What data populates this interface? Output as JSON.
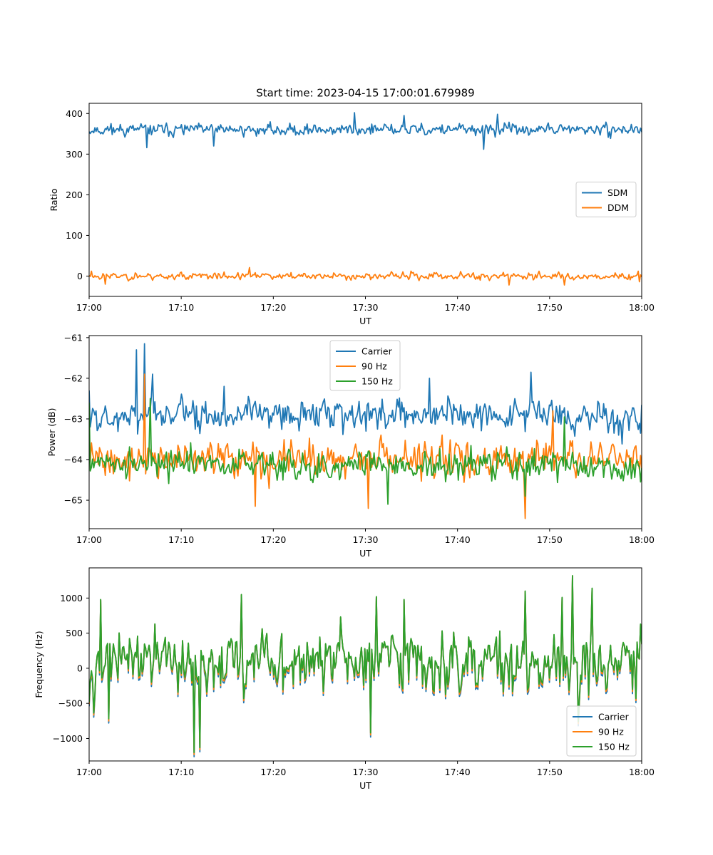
{
  "figure": {
    "title": "Start time: 2023-04-15 17:00:01.679989"
  },
  "chart_data": [
    {
      "type": "line",
      "panel": "ratio",
      "xlabel": "UT",
      "ylabel": "Ratio",
      "x_range": [
        "17:00",
        "18:00"
      ],
      "x_ticks": [
        "17:00",
        "17:10",
        "17:20",
        "17:30",
        "17:40",
        "17:50",
        "18:00"
      ],
      "ylim": [
        -50,
        425
      ],
      "y_ticks": [
        0,
        100,
        200,
        300,
        400
      ],
      "legend_position": "center-right",
      "n_points": 480,
      "series": [
        {
          "name": "SDM",
          "color": "#1f77b4",
          "mean": 360,
          "spread": 13,
          "seed": 11,
          "features": [
            [
              0.04,
              375
            ],
            [
              0.105,
              316
            ],
            [
              0.225,
              320
            ],
            [
              0.48,
              402
            ],
            [
              0.57,
              395
            ],
            [
              0.715,
              312
            ],
            [
              0.74,
              398
            ],
            [
              0.965,
              352
            ]
          ]
        },
        {
          "name": "DDM",
          "color": "#ff7f0e",
          "mean": 0,
          "spread": 8,
          "seed": 23,
          "features": [
            [
              0.005,
              12
            ],
            [
              0.03,
              -20
            ],
            [
              0.29,
              21
            ],
            [
              0.76,
              -22
            ],
            [
              0.86,
              -22
            ],
            [
              0.995,
              -14
            ]
          ]
        }
      ]
    },
    {
      "type": "line",
      "panel": "power",
      "xlabel": "UT",
      "ylabel": "Power (dB)",
      "x_range": [
        "17:00",
        "18:00"
      ],
      "x_ticks": [
        "17:00",
        "17:10",
        "17:20",
        "17:30",
        "17:40",
        "17:50",
        "18:00"
      ],
      "ylim": [
        -65.7,
        -60.95
      ],
      "y_ticks": [
        -65,
        -64,
        -63,
        -62,
        -61
      ],
      "legend_position": "upper-center",
      "n_points": 480,
      "series": [
        {
          "name": "Carrier",
          "color": "#1f77b4",
          "mean": -62.9,
          "spread": 0.36,
          "seed": 5,
          "features": [
            [
              0.0,
              -62.3
            ],
            [
              0.085,
              -61.3
            ],
            [
              0.1,
              -61.15
            ],
            [
              0.115,
              -61.9
            ],
            [
              0.245,
              -62.2
            ],
            [
              0.5,
              -63.3
            ],
            [
              0.615,
              -62.0
            ],
            [
              0.8,
              -61.85
            ],
            [
              0.998,
              -63.35
            ]
          ]
        },
        {
          "name": "90 Hz",
          "color": "#ff7f0e",
          "mean": -64.0,
          "spread": 0.38,
          "seed": 41,
          "features": [
            [
              0.1,
              -61.9
            ],
            [
              0.3,
              -65.15
            ],
            [
              0.505,
              -65.2
            ],
            [
              0.79,
              -65.45
            ],
            [
              0.84,
              -62.8
            ],
            [
              0.998,
              -63.9
            ]
          ]
        },
        {
          "name": "150 Hz",
          "color": "#2ca02c",
          "mean": -64.15,
          "spread": 0.33,
          "seed": 77,
          "features": [
            [
              0.0,
              -62.6
            ],
            [
              0.11,
              -62.5
            ],
            [
              0.54,
              -65.1
            ],
            [
              0.79,
              -64.9
            ],
            [
              0.86,
              -62.95
            ],
            [
              0.998,
              -64.55
            ]
          ]
        }
      ]
    },
    {
      "type": "line",
      "panel": "frequency",
      "xlabel": "UT",
      "ylabel": "Frequency (Hz)",
      "x_range": [
        "17:00",
        "18:00"
      ],
      "x_ticks": [
        "17:00",
        "17:10",
        "17:20",
        "17:30",
        "17:40",
        "17:50",
        "18:00"
      ],
      "ylim": [
        -1320,
        1430
      ],
      "y_ticks": [
        -1000,
        -500,
        0,
        500,
        1000
      ],
      "legend_position": "lower-right",
      "n_points": 480,
      "series": [
        {
          "name": "Carrier",
          "color": "#1f77b4",
          "offset": -60
        },
        {
          "name": "90 Hz",
          "color": "#ff7f0e",
          "offset": -30
        },
        {
          "name": "150 Hz",
          "color": "#2ca02c",
          "offset": 0
        }
      ],
      "base_signal": {
        "mean": 80,
        "spread": 380,
        "seed": 97,
        "features": [
          [
            0.02,
            980
          ],
          [
            0.035,
            -720
          ],
          [
            0.19,
            -1200
          ],
          [
            0.2,
            -1130
          ],
          [
            0.275,
            1050
          ],
          [
            0.51,
            -920
          ],
          [
            0.52,
            1020
          ],
          [
            0.57,
            980
          ],
          [
            0.79,
            1100
          ],
          [
            0.855,
            1010
          ],
          [
            0.875,
            1320
          ],
          [
            0.885,
            -760
          ],
          [
            0.91,
            1140
          ],
          [
            0.99,
            -430
          ],
          [
            0.997,
            630
          ]
        ]
      }
    }
  ]
}
